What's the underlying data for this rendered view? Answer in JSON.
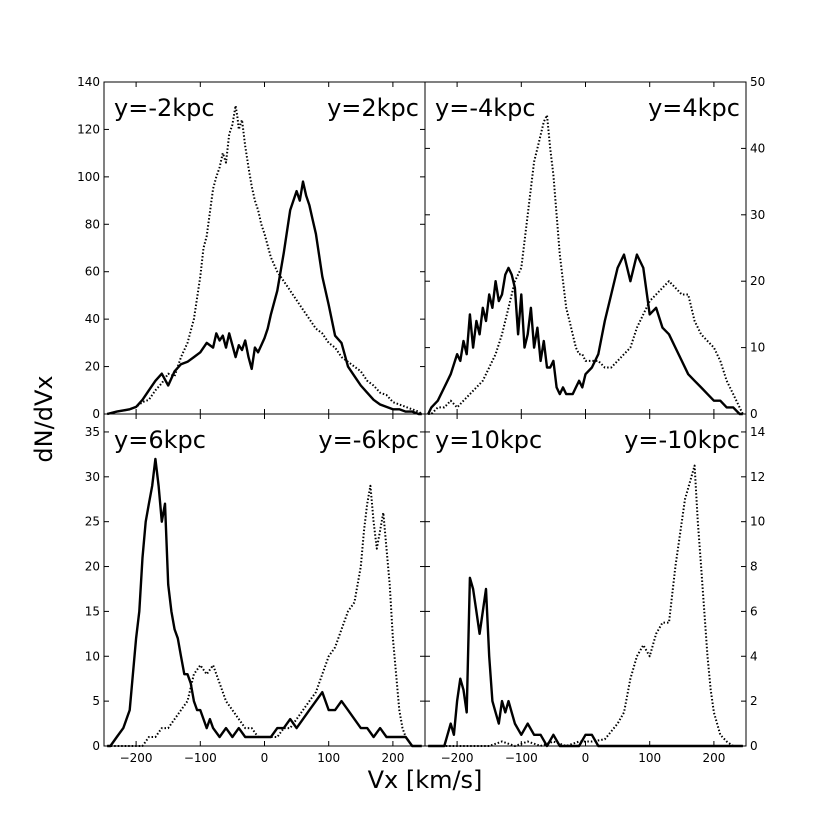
{
  "figure": {
    "xlabel": "Vx [km/s]",
    "ylabel": "dN/dVx",
    "xlim": [
      -250,
      250
    ],
    "xticks": [
      -200,
      -100,
      0,
      100,
      200
    ],
    "line_color": "#000000"
  },
  "chart_data": [
    {
      "type": "line",
      "panel": "top-left",
      "ylim": [
        0,
        140
      ],
      "yticks": [
        0,
        20,
        40,
        60,
        80,
        100,
        120,
        140
      ],
      "ytick_side": "left",
      "label_left": "y=-2kpc",
      "label_right": "y=2kpc",
      "series": [
        {
          "style": "solid",
          "x": [
            -245,
            -230,
            -210,
            -200,
            -190,
            -180,
            -170,
            -160,
            -150,
            -140,
            -130,
            -120,
            -110,
            -100,
            -90,
            -80,
            -75,
            -70,
            -65,
            -60,
            -55,
            -50,
            -45,
            -40,
            -35,
            -30,
            -25,
            -20,
            -15,
            -10,
            -5,
            0,
            5,
            10,
            20,
            30,
            40,
            50,
            55,
            60,
            65,
            70,
            75,
            80,
            90,
            100,
            110,
            120,
            130,
            140,
            150,
            160,
            170,
            180,
            190,
            200,
            210,
            220,
            230,
            240,
            245
          ],
          "y": [
            0,
            1,
            2,
            3,
            6,
            10,
            14,
            17,
            12,
            18,
            21,
            22,
            24,
            26,
            30,
            28,
            34,
            31,
            33,
            28,
            34,
            29,
            24,
            29,
            27,
            31,
            24,
            19,
            28,
            26,
            29,
            32,
            36,
            42,
            52,
            68,
            86,
            94,
            90,
            98,
            92,
            88,
            82,
            76,
            58,
            46,
            33,
            30,
            20,
            16,
            12,
            9,
            6,
            4,
            3,
            2,
            2,
            1,
            1,
            0,
            0
          ]
        },
        {
          "style": "dotted",
          "x": [
            -245,
            -230,
            -210,
            -200,
            -190,
            -180,
            -170,
            -160,
            -150,
            -140,
            -130,
            -120,
            -110,
            -100,
            -95,
            -90,
            -85,
            -80,
            -75,
            -70,
            -65,
            -60,
            -55,
            -50,
            -45,
            -42,
            -40,
            -35,
            -30,
            -25,
            -20,
            -15,
            -10,
            -5,
            0,
            10,
            20,
            30,
            40,
            50,
            60,
            70,
            80,
            90,
            100,
            110,
            120,
            130,
            140,
            150,
            160,
            170,
            180,
            190,
            200,
            210,
            220,
            230,
            240,
            245
          ],
          "y": [
            0,
            1,
            2,
            3,
            5,
            6,
            10,
            13,
            17,
            16,
            24,
            30,
            40,
            58,
            70,
            75,
            85,
            95,
            100,
            104,
            110,
            106,
            118,
            122,
            130,
            125,
            120,
            124,
            113,
            104,
            96,
            90,
            86,
            80,
            76,
            66,
            60,
            56,
            52,
            48,
            44,
            40,
            36,
            34,
            30,
            28,
            24,
            22,
            20,
            18,
            14,
            12,
            9,
            8,
            5,
            4,
            3,
            2,
            1,
            0
          ]
        }
      ]
    },
    {
      "type": "line",
      "panel": "top-right",
      "ylim": [
        0,
        50
      ],
      "yticks": [
        0,
        10,
        20,
        30,
        40,
        50
      ],
      "ytick_side": "right",
      "label_left": "y=-4kpc",
      "label_right": "y=4kpc",
      "series": [
        {
          "style": "solid",
          "x": [
            -245,
            -240,
            -230,
            -220,
            -210,
            -200,
            -195,
            -190,
            -185,
            -180,
            -175,
            -170,
            -165,
            -160,
            -155,
            -150,
            -145,
            -140,
            -135,
            -130,
            -125,
            -120,
            -115,
            -110,
            -105,
            -100,
            -95,
            -90,
            -85,
            -80,
            -75,
            -70,
            -65,
            -60,
            -55,
            -50,
            -45,
            -40,
            -35,
            -30,
            -25,
            -20,
            -15,
            -10,
            -5,
            0,
            10,
            20,
            30,
            40,
            50,
            60,
            70,
            80,
            90,
            100,
            110,
            120,
            130,
            140,
            150,
            160,
            170,
            180,
            190,
            200,
            210,
            220,
            230,
            240,
            245
          ],
          "y": [
            0,
            1,
            2,
            4,
            6,
            9,
            8,
            11,
            9,
            15,
            10,
            14,
            12,
            16,
            14,
            18,
            16,
            20,
            17,
            18,
            21,
            22,
            21,
            19,
            12,
            18,
            10,
            12,
            16,
            10,
            13,
            8,
            11,
            7,
            7,
            8,
            4,
            3,
            4,
            3,
            3,
            3,
            4,
            5,
            4,
            6,
            7,
            9,
            14,
            18,
            22,
            24,
            20,
            24,
            22,
            15,
            16,
            13,
            12,
            10,
            8,
            6,
            5,
            4,
            3,
            2,
            2,
            1,
            1,
            0,
            0
          ]
        },
        {
          "style": "dotted",
          "x": [
            -245,
            -240,
            -230,
            -220,
            -210,
            -200,
            -190,
            -180,
            -170,
            -160,
            -150,
            -140,
            -130,
            -120,
            -110,
            -100,
            -95,
            -90,
            -85,
            -80,
            -75,
            -70,
            -65,
            -60,
            -55,
            -50,
            -45,
            -40,
            -35,
            -30,
            -25,
            -20,
            -15,
            -10,
            -5,
            0,
            10,
            20,
            30,
            40,
            50,
            60,
            70,
            80,
            90,
            100,
            110,
            120,
            130,
            140,
            150,
            160,
            170,
            180,
            190,
            200,
            210,
            220,
            230,
            240,
            245
          ],
          "y": [
            0,
            0,
            1,
            1,
            2,
            1,
            2,
            3,
            4,
            5,
            7,
            9,
            12,
            16,
            20,
            22,
            26,
            30,
            34,
            38,
            40,
            42,
            44,
            45,
            40,
            36,
            30,
            24,
            20,
            16,
            14,
            12,
            10,
            9,
            9,
            8,
            8,
            8,
            7,
            7,
            8,
            9,
            10,
            13,
            15,
            17,
            18,
            19,
            20,
            19,
            18,
            18,
            14,
            12,
            11,
            10,
            8,
            5,
            3,
            1,
            0
          ]
        }
      ]
    },
    {
      "type": "line",
      "panel": "bottom-left",
      "ylim": [
        0,
        37
      ],
      "yticks": [
        0,
        5,
        10,
        15,
        20,
        25,
        30,
        35
      ],
      "ytick_side": "left",
      "label_left": "y=6kpc",
      "label_right": "y=-6kpc",
      "series": [
        {
          "style": "solid",
          "x": [
            -245,
            -240,
            -230,
            -220,
            -210,
            -205,
            -200,
            -195,
            -190,
            -185,
            -180,
            -175,
            -170,
            -165,
            -160,
            -155,
            -150,
            -145,
            -140,
            -135,
            -130,
            -125,
            -120,
            -115,
            -110,
            -105,
            -100,
            -95,
            -90,
            -85,
            -80,
            -70,
            -60,
            -50,
            -40,
            -30,
            -20,
            -10,
            0,
            10,
            20,
            30,
            40,
            50,
            60,
            70,
            80,
            90,
            100,
            110,
            120,
            130,
            140,
            150,
            160,
            170,
            180,
            190,
            200,
            210,
            220,
            230,
            240,
            245
          ],
          "y": [
            0,
            0,
            1,
            2,
            4,
            8,
            12,
            15,
            21,
            25,
            27,
            29,
            32,
            29,
            25,
            27,
            18,
            15,
            13,
            12,
            10,
            8,
            8,
            7,
            5,
            4,
            4,
            3,
            2,
            3,
            2,
            1,
            2,
            1,
            2,
            1,
            1,
            1,
            1,
            1,
            2,
            2,
            3,
            2,
            3,
            4,
            5,
            6,
            4,
            4,
            5,
            4,
            3,
            2,
            2,
            1,
            2,
            1,
            1,
            1,
            1,
            0,
            0,
            0
          ]
        },
        {
          "style": "dotted",
          "x": [
            -245,
            -230,
            -210,
            -200,
            -190,
            -180,
            -170,
            -160,
            -150,
            -140,
            -130,
            -120,
            -110,
            -100,
            -90,
            -80,
            -70,
            -60,
            -50,
            -40,
            -30,
            -20,
            -10,
            0,
            10,
            20,
            30,
            40,
            50,
            60,
            70,
            80,
            90,
            100,
            110,
            120,
            130,
            140,
            150,
            155,
            160,
            165,
            170,
            175,
            180,
            185,
            190,
            195,
            200,
            205,
            210,
            215,
            220,
            230,
            240,
            245
          ],
          "y": [
            0,
            0,
            0,
            0,
            0,
            1,
            1,
            2,
            2,
            3,
            4,
            5,
            8,
            9,
            8,
            9,
            7,
            5,
            4,
            3,
            2,
            2,
            1,
            1,
            1,
            1,
            2,
            2,
            3,
            4,
            5,
            6,
            8,
            10,
            11,
            13,
            15,
            16,
            20,
            24,
            27,
            29,
            25,
            22,
            24,
            26,
            22,
            18,
            12,
            8,
            4,
            2,
            1,
            0,
            0,
            0
          ]
        }
      ]
    },
    {
      "type": "line",
      "panel": "bottom-right",
      "ylim": [
        0,
        14.8
      ],
      "yticks": [
        0,
        2,
        4,
        6,
        8,
        10,
        12,
        14
      ],
      "ytick_side": "right",
      "label_left": "y=10kpc",
      "label_right": "y=-10kpc",
      "series": [
        {
          "style": "solid",
          "x": [
            -245,
            -240,
            -230,
            -220,
            -215,
            -210,
            -205,
            -200,
            -195,
            -190,
            -185,
            -180,
            -175,
            -170,
            -165,
            -160,
            -155,
            -150,
            -145,
            -140,
            -135,
            -130,
            -125,
            -120,
            -115,
            -110,
            -100,
            -90,
            -80,
            -70,
            -60,
            -50,
            -40,
            -30,
            -20,
            -10,
            0,
            10,
            20,
            30,
            40,
            50,
            60,
            70,
            80,
            90,
            100,
            110,
            120,
            130,
            140,
            150,
            160,
            170,
            180,
            190,
            200,
            210,
            220,
            230,
            240,
            245
          ],
          "y": [
            0,
            0,
            0,
            0,
            0.5,
            1,
            0.5,
            2,
            3,
            2.5,
            1.5,
            7.5,
            7,
            6,
            5,
            6,
            7,
            4,
            2,
            1.5,
            1,
            2,
            1.5,
            2,
            1.5,
            1,
            0.5,
            1,
            0.5,
            0.5,
            0,
            0.5,
            0,
            0,
            0,
            0,
            0.5,
            0.5,
            0,
            0,
            0,
            0,
            0,
            0,
            0,
            0,
            0,
            0,
            0,
            0,
            0,
            0,
            0,
            0,
            0,
            0,
            0,
            0,
            0,
            0,
            0,
            0
          ]
        },
        {
          "style": "dotted",
          "x": [
            -245,
            -230,
            -210,
            -190,
            -170,
            -150,
            -130,
            -110,
            -90,
            -70,
            -50,
            -30,
            -10,
            10,
            30,
            50,
            60,
            70,
            80,
            90,
            100,
            110,
            120,
            130,
            140,
            145,
            150,
            155,
            160,
            165,
            170,
            175,
            180,
            185,
            190,
            195,
            200,
            205,
            210,
            220,
            230,
            240,
            245
          ],
          "y": [
            0,
            0,
            0,
            0,
            0,
            0,
            0.2,
            0,
            0.2,
            0,
            0.2,
            0,
            0.2,
            0.2,
            0.3,
            1,
            1.5,
            3,
            4,
            4.5,
            4,
            5,
            5.5,
            5.5,
            8,
            9,
            10,
            11,
            11.5,
            12,
            12.5,
            10,
            8,
            6,
            4,
            2.5,
            1.5,
            1,
            0.5,
            0.2,
            0,
            0,
            0
          ]
        }
      ]
    }
  ]
}
